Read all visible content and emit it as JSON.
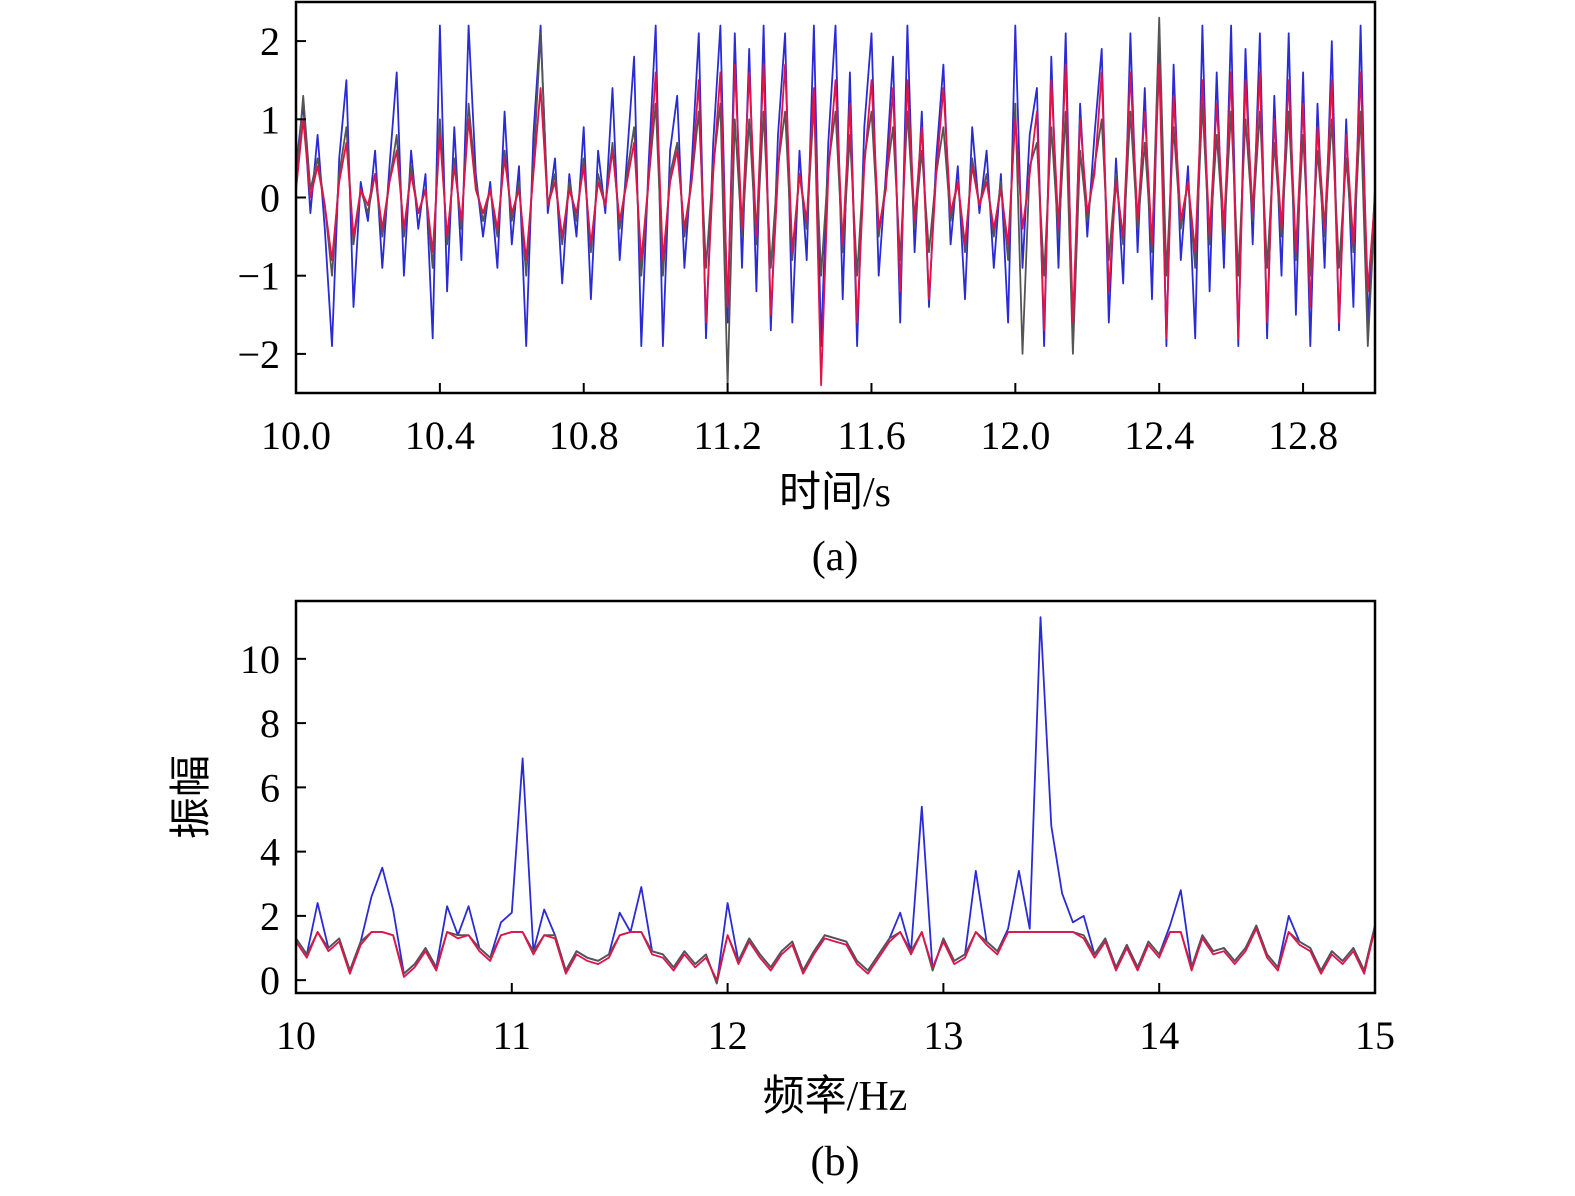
{
  "chart_data": [
    {
      "type": "line",
      "caption": "(a)",
      "xlabel": "时间/s",
      "ylabel": "",
      "xlim": [
        10.0,
        13.0
      ],
      "ylim": [
        -2.5,
        2.5
      ],
      "xticks": [
        "10.0",
        "10.4",
        "10.8",
        "11.2",
        "11.6",
        "12.0",
        "12.4",
        "12.8"
      ],
      "yticks": [
        "2",
        "1",
        "0",
        "−1",
        "−2"
      ],
      "grid": false,
      "x": [
        10.0,
        10.02,
        10.04,
        10.06,
        10.08,
        10.1,
        10.12,
        10.14,
        10.16,
        10.18,
        10.2,
        10.22,
        10.24,
        10.26,
        10.28,
        10.3,
        10.32,
        10.34,
        10.36,
        10.38,
        10.4,
        10.42,
        10.44,
        10.46,
        10.48,
        10.5,
        10.52,
        10.54,
        10.56,
        10.58,
        10.6,
        10.62,
        10.64,
        10.66,
        10.68,
        10.7,
        10.72,
        10.74,
        10.76,
        10.78,
        10.8,
        10.82,
        10.84,
        10.86,
        10.88,
        10.9,
        10.92,
        10.94,
        10.96,
        10.98,
        11.0,
        11.02,
        11.04,
        11.06,
        11.08,
        11.1,
        11.12,
        11.14,
        11.16,
        11.18,
        11.2,
        11.22,
        11.24,
        11.26,
        11.28,
        11.3,
        11.32,
        11.34,
        11.36,
        11.38,
        11.4,
        11.42,
        11.44,
        11.46,
        11.48,
        11.5,
        11.52,
        11.54,
        11.56,
        11.58,
        11.6,
        11.62,
        11.64,
        11.66,
        11.68,
        11.7,
        11.72,
        11.74,
        11.76,
        11.78,
        11.8,
        11.82,
        11.84,
        11.86,
        11.88,
        11.9,
        11.92,
        11.94,
        11.96,
        11.98,
        12.0,
        12.02,
        12.04,
        12.06,
        12.08,
        12.1,
        12.12,
        12.14,
        12.16,
        12.18,
        12.2,
        12.22,
        12.24,
        12.26,
        12.28,
        12.3,
        12.32,
        12.34,
        12.36,
        12.38,
        12.4,
        12.42,
        12.44,
        12.46,
        12.48,
        12.5,
        12.52,
        12.54,
        12.56,
        12.58,
        12.6,
        12.62,
        12.64,
        12.66,
        12.68,
        12.7,
        12.72,
        12.74,
        12.76,
        12.78,
        12.8,
        12.82,
        12.84,
        12.86,
        12.88,
        12.9,
        12.92,
        12.94,
        12.96,
        12.98,
        13.0
      ],
      "series": [
        {
          "color": "#2b2bd6",
          "values": [
            0.4,
            1.2,
            -0.2,
            0.8,
            -0.4,
            -1.9,
            0.5,
            1.5,
            -1.4,
            0.2,
            -0.3,
            0.6,
            -0.9,
            0.4,
            1.6,
            -1.0,
            0.6,
            -0.4,
            0.3,
            -1.8,
            2.2,
            -1.2,
            0.9,
            -0.8,
            2.2,
            0.3,
            -0.5,
            0.2,
            -0.9,
            1.1,
            -0.6,
            0.4,
            -1.9,
            0.8,
            2.2,
            -0.2,
            0.5,
            -1.1,
            0.3,
            -0.5,
            0.9,
            -1.3,
            0.6,
            -0.2,
            1.4,
            -0.8,
            0.5,
            1.8,
            -1.9,
            0.4,
            2.2,
            -1.9,
            0.6,
            1.3,
            -0.9,
            0.4,
            2.1,
            -1.8,
            0.7,
            2.2,
            -1.6,
            2.1,
            -0.9,
            1.9,
            -1.2,
            2.2,
            -1.7,
            0.8,
            2.1,
            -1.6,
            0.6,
            -0.8,
            2.2,
            -1.9,
            0.7,
            2.2,
            -1.3,
            1.6,
            -1.9,
            0.9,
            2.1,
            -1.0,
            0.3,
            1.8,
            -1.6,
            2.2,
            -0.7,
            1.1,
            -1.4,
            0.5,
            1.7,
            -0.6,
            0.4,
            -1.3,
            0.9,
            -0.2,
            0.6,
            -0.9,
            0.3,
            -1.6,
            2.2,
            -0.9,
            0.8,
            1.4,
            -1.9,
            1.8,
            -0.9,
            2.1,
            -1.9,
            1.2,
            -0.5,
            0.8,
            1.9,
            -1.6,
            0.5,
            -1.1,
            2.1,
            -0.7,
            1.4,
            -1.3,
            2.2,
            -1.9,
            1.7,
            -0.8,
            0.4,
            -1.8,
            2.2,
            -1.2,
            1.6,
            -0.9,
            2.2,
            -1.9,
            1.9,
            -0.6,
            2.1,
            -1.8,
            1.3,
            -1.0,
            2.1,
            -1.5,
            1.6,
            -1.9,
            1.2,
            -0.9,
            2.0,
            -1.7,
            1.0,
            -1.4,
            2.2,
            -1.6,
            0.1
          ]
        },
        {
          "color": "#555555",
          "values": [
            0.2,
            1.3,
            0.1,
            0.5,
            -0.1,
            -1.0,
            0.3,
            0.9,
            -0.6,
            0.1,
            -0.2,
            0.3,
            -0.5,
            0.2,
            0.8,
            -0.5,
            0.4,
            -0.2,
            0.1,
            -0.9,
            1.0,
            -0.6,
            0.5,
            -0.4,
            1.2,
            0.2,
            -0.3,
            0.1,
            -0.5,
            0.6,
            -0.3,
            0.2,
            -1.0,
            0.4,
            2.1,
            -0.1,
            0.3,
            -0.6,
            0.2,
            -0.3,
            0.5,
            -0.7,
            0.3,
            -0.1,
            0.7,
            -0.4,
            0.3,
            0.9,
            -1.0,
            0.2,
            1.2,
            -1.0,
            0.3,
            0.7,
            -0.5,
            0.2,
            1.1,
            -0.9,
            0.4,
            1.2,
            -2.4,
            1.0,
            -0.5,
            1.0,
            -0.6,
            1.1,
            -0.9,
            0.4,
            1.1,
            -0.8,
            0.3,
            -0.4,
            1.2,
            -1.0,
            0.4,
            1.1,
            -0.7,
            0.8,
            -1.0,
            0.5,
            1.1,
            -0.5,
            0.2,
            0.9,
            -0.8,
            1.1,
            -0.4,
            0.6,
            -0.7,
            0.3,
            0.9,
            -0.3,
            0.2,
            -0.7,
            0.5,
            -0.1,
            0.3,
            -0.5,
            0.2,
            -0.8,
            1.2,
            -2.0,
            0.4,
            0.7,
            -1.0,
            0.9,
            -0.5,
            1.1,
            -2.0,
            0.6,
            -0.3,
            0.4,
            1.0,
            -0.8,
            0.3,
            -0.6,
            1.1,
            -0.4,
            0.7,
            -0.7,
            2.3,
            -1.0,
            0.9,
            -0.4,
            0.2,
            -0.9,
            1.2,
            -0.6,
            0.8,
            -0.5,
            1.1,
            -1.0,
            1.0,
            -0.3,
            1.1,
            -0.9,
            0.7,
            -0.5,
            1.1,
            -0.8,
            0.8,
            -1.0,
            0.6,
            -0.5,
            1.0,
            -0.9,
            0.5,
            -0.7,
            1.1,
            -1.9,
            -0.1
          ]
        },
        {
          "color": "#e0134a",
          "values": [
            0.1,
            1.0,
            0.0,
            0.4,
            -0.1,
            -0.8,
            0.2,
            0.7,
            -0.5,
            0.1,
            -0.1,
            0.3,
            -0.4,
            0.2,
            0.6,
            -0.4,
            0.3,
            -0.2,
            0.1,
            -0.7,
            0.8,
            -0.5,
            0.4,
            -0.3,
            1.0,
            0.1,
            -0.2,
            0.1,
            -0.4,
            0.5,
            -0.2,
            0.1,
            -0.8,
            0.3,
            1.4,
            -0.1,
            0.2,
            -0.5,
            0.1,
            -0.2,
            0.4,
            -0.6,
            0.2,
            -0.1,
            0.6,
            -0.3,
            0.2,
            0.7,
            -0.8,
            0.2,
            1.6,
            -0.8,
            0.2,
            0.6,
            -0.4,
            0.2,
            1.5,
            -1.6,
            0.3,
            1.6,
            -1.4,
            1.7,
            -0.4,
            1.6,
            -0.5,
            1.7,
            -1.5,
            0.3,
            1.7,
            -0.7,
            0.3,
            -0.3,
            1.4,
            -2.4,
            0.3,
            1.5,
            -0.6,
            1.2,
            -1.6,
            0.4,
            1.5,
            -0.4,
            0.1,
            1.4,
            -1.2,
            1.5,
            -0.3,
            0.9,
            -1.3,
            0.3,
            1.4,
            -0.2,
            0.2,
            -0.6,
            0.4,
            -0.1,
            0.2,
            -0.4,
            0.1,
            -0.6,
            1.0,
            -0.4,
            0.3,
            1.1,
            -1.7,
            1.5,
            -0.4,
            1.7,
            -1.6,
            1.0,
            -0.2,
            0.3,
            1.6,
            -1.2,
            0.2,
            -0.5,
            1.6,
            -0.3,
            1.1,
            -0.6,
            1.7,
            -1.8,
            1.3,
            -0.3,
            0.2,
            -0.7,
            1.5,
            -0.5,
            1.2,
            -0.4,
            1.6,
            -1.8,
            1.5,
            -0.2,
            1.6,
            -1.6,
            1.0,
            -0.4,
            1.5,
            -0.7,
            1.2,
            -1.4,
            0.9,
            -0.4,
            1.5,
            -1.6,
            0.8,
            -0.6,
            1.6,
            -1.2,
            0.0
          ]
        }
      ]
    },
    {
      "type": "line",
      "caption": "(b)",
      "xlabel": "频率/Hz",
      "ylabel": "振幅",
      "xlim": [
        10,
        15
      ],
      "ylim": [
        -0.4,
        11.8
      ],
      "xticks": [
        "10",
        "11",
        "12",
        "13",
        "14",
        "15"
      ],
      "yticks": [
        "10",
        "8",
        "6",
        "4",
        "2",
        "0"
      ],
      "grid": false,
      "x": [
        10.0,
        10.05,
        10.1,
        10.15,
        10.2,
        10.25,
        10.3,
        10.35,
        10.4,
        10.45,
        10.5,
        10.55,
        10.6,
        10.65,
        10.7,
        10.75,
        10.8,
        10.85,
        10.9,
        10.95,
        11.0,
        11.05,
        11.1,
        11.15,
        11.2,
        11.25,
        11.3,
        11.35,
        11.4,
        11.45,
        11.5,
        11.55,
        11.6,
        11.65,
        11.7,
        11.75,
        11.8,
        11.85,
        11.9,
        11.95,
        12.0,
        12.05,
        12.1,
        12.15,
        12.2,
        12.25,
        12.3,
        12.35,
        12.4,
        12.45,
        12.5,
        12.55,
        12.6,
        12.65,
        12.7,
        12.75,
        12.8,
        12.85,
        12.9,
        12.95,
        13.0,
        13.05,
        13.1,
        13.15,
        13.2,
        13.25,
        13.3,
        13.35,
        13.4,
        13.45,
        13.5,
        13.55,
        13.6,
        13.65,
        13.7,
        13.75,
        13.8,
        13.85,
        13.9,
        13.95,
        14.0,
        14.05,
        14.1,
        14.15,
        14.2,
        14.25,
        14.3,
        14.35,
        14.4,
        14.45,
        14.5,
        14.55,
        14.6,
        14.65,
        14.7,
        14.75,
        14.8,
        14.85,
        14.9,
        14.95,
        15.0
      ],
      "series": [
        {
          "color": "#2b2bd6",
          "values": [
            1.3,
            0.8,
            2.4,
            1.0,
            1.3,
            0.3,
            1.2,
            2.6,
            3.5,
            2.2,
            0.2,
            0.5,
            1.0,
            0.4,
            2.3,
            1.4,
            2.3,
            1.0,
            0.7,
            1.8,
            2.1,
            6.9,
            0.9,
            2.2,
            1.4,
            0.3,
            0.9,
            0.7,
            0.6,
            0.8,
            2.1,
            1.5,
            2.9,
            0.9,
            0.8,
            0.4,
            0.9,
            0.5,
            0.8,
            -0.1,
            2.4,
            0.6,
            1.3,
            0.8,
            0.4,
            0.9,
            1.2,
            0.3,
            0.9,
            1.4,
            1.3,
            1.2,
            0.6,
            0.3,
            0.8,
            1.3,
            2.1,
            0.9,
            5.4,
            0.3,
            1.3,
            0.6,
            0.8,
            3.4,
            1.2,
            0.9,
            1.6,
            3.4,
            1.6,
            11.3,
            4.8,
            2.7,
            1.8,
            2.0,
            0.8,
            1.3,
            0.4,
            1.1,
            0.4,
            1.2,
            0.8,
            1.7,
            2.8,
            0.4,
            1.4,
            0.9,
            1.0,
            0.6,
            1.0,
            1.7,
            0.8,
            0.4,
            2.0,
            1.2,
            1.0,
            0.3,
            0.9,
            0.6,
            1.0,
            0.3,
            1.7
          ]
        },
        {
          "color": "#555555",
          "values": [
            1.3,
            0.8,
            1.5,
            1.0,
            1.3,
            0.3,
            1.2,
            1.5,
            1.5,
            1.4,
            0.2,
            0.5,
            1.0,
            0.4,
            1.5,
            1.4,
            1.4,
            1.0,
            0.7,
            1.4,
            1.5,
            1.5,
            0.9,
            1.4,
            1.4,
            0.3,
            0.9,
            0.7,
            0.6,
            0.8,
            1.4,
            1.5,
            1.5,
            0.9,
            0.8,
            0.4,
            0.9,
            0.5,
            0.8,
            -0.1,
            1.4,
            0.6,
            1.3,
            0.8,
            0.4,
            0.9,
            1.2,
            0.3,
            0.9,
            1.4,
            1.3,
            1.2,
            0.6,
            0.3,
            0.8,
            1.3,
            1.5,
            0.9,
            1.5,
            0.3,
            1.3,
            0.6,
            0.8,
            1.5,
            1.2,
            0.9,
            1.5,
            1.5,
            1.5,
            1.5,
            1.5,
            1.5,
            1.5,
            1.4,
            0.8,
            1.3,
            0.4,
            1.1,
            0.4,
            1.2,
            0.8,
            1.5,
            1.5,
            0.4,
            1.4,
            0.9,
            1.0,
            0.6,
            1.0,
            1.7,
            0.8,
            0.4,
            1.5,
            1.2,
            1.0,
            0.3,
            0.9,
            0.6,
            1.0,
            0.3,
            1.7
          ]
        },
        {
          "color": "#e0134a",
          "values": [
            1.2,
            0.7,
            1.5,
            0.9,
            1.2,
            0.2,
            1.1,
            1.5,
            1.5,
            1.4,
            0.1,
            0.4,
            0.9,
            0.3,
            1.5,
            1.3,
            1.4,
            0.9,
            0.6,
            1.4,
            1.5,
            1.5,
            0.8,
            1.4,
            1.3,
            0.2,
            0.8,
            0.6,
            0.5,
            0.7,
            1.4,
            1.5,
            1.5,
            0.8,
            0.7,
            0.3,
            0.8,
            0.4,
            0.7,
            0.0,
            1.4,
            0.5,
            1.2,
            0.7,
            0.3,
            0.8,
            1.1,
            0.2,
            0.8,
            1.3,
            1.2,
            1.1,
            0.5,
            0.2,
            0.7,
            1.2,
            1.5,
            0.8,
            1.5,
            0.4,
            1.2,
            0.5,
            0.7,
            1.5,
            1.1,
            0.8,
            1.5,
            1.5,
            1.5,
            1.5,
            1.5,
            1.5,
            1.5,
            1.3,
            0.7,
            1.2,
            0.3,
            1.0,
            0.3,
            1.1,
            0.7,
            1.5,
            1.5,
            0.3,
            1.3,
            0.8,
            0.9,
            0.5,
            0.9,
            1.6,
            0.7,
            0.3,
            1.5,
            1.1,
            0.9,
            0.2,
            0.8,
            0.5,
            0.9,
            0.2,
            1.6
          ]
        }
      ]
    }
  ]
}
